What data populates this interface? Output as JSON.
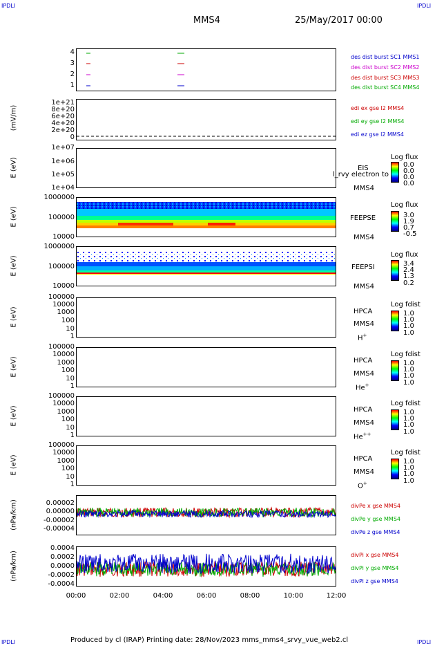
{
  "corners": {
    "tl": "IPDLI",
    "tr": "IPDLI",
    "bl": "IPDLI",
    "br": "IPDLI"
  },
  "header": {
    "spacecraft": "MMS4",
    "datetime": "25/May/2017 00:00"
  },
  "footer": {
    "text": "Produced by cl (IRAP)    Printing date: 28/Nov/2023    mms_mms4_srvy_vue_web2.cl"
  },
  "x_axis": {
    "ticks": [
      "00:00",
      "02:00",
      "04:00",
      "06:00",
      "08:00",
      "10:00",
      "12:00"
    ]
  },
  "panels": {
    "p1": {
      "yticks": [
        "4",
        "3",
        "2",
        "1"
      ],
      "labels": [
        {
          "text": "des dist burst SC1 MMS1",
          "color": "#0000cc"
        },
        {
          "text": "des dist burst SC2 MMS2",
          "color": "#cc00cc"
        },
        {
          "text": "des dist burst SC3 MMS3",
          "color": "#cc0000"
        },
        {
          "text": "des dist burst SC4 MMS4",
          "color": "#00aa00"
        }
      ]
    },
    "p2": {
      "ylabel": "(mV/m)",
      "yticks": [
        "1e+21",
        "8e+20",
        "6e+20",
        "4e+20",
        "2e+20",
        "0"
      ],
      "labels": [
        {
          "text": "edi ex gse l2 MMS4",
          "color": "#cc0000"
        },
        {
          "text": "edi ey gse l2 MMS4",
          "color": "#00aa00"
        },
        {
          "text": "edi ez gse l2 MMS4",
          "color": "#0000cc"
        }
      ]
    },
    "p3": {
      "ylabel": "E (eV)",
      "yticks": [
        "1e+07",
        "1e+06",
        "1e+05",
        "1e+04"
      ],
      "inst": "EIS",
      "inst2": "MMS4",
      "overlay": "l_rvy electron to",
      "cbar_title": "Log flux",
      "cbar_vals": [
        "0.0",
        "0.0",
        "0.0",
        "0.0"
      ]
    },
    "p4": {
      "ylabel": "E (eV)",
      "yticks": [
        "1000000",
        "100000",
        "10000"
      ],
      "inst": "FEEPSE",
      "inst2": "MMS4",
      "cbar_title": "Log flux",
      "cbar_vals": [
        "3.0",
        "1.9",
        "0.7",
        "-0.5"
      ]
    },
    "p5": {
      "ylabel": "E (eV)",
      "yticks": [
        "1000000",
        "100000",
        "10000"
      ],
      "inst": "FEEPSI",
      "inst2": "MMS4",
      "cbar_title": "Log flux",
      "cbar_vals": [
        "3.4",
        "2.4",
        "1.3",
        "0.2"
      ]
    },
    "p6": {
      "ylabel": "E (eV)",
      "yticks": [
        "100000",
        "10000",
        "1000",
        "100",
        "10",
        "1"
      ],
      "inst": "HPCA",
      "inst2": "MMS4",
      "species": "H",
      "sup": "+",
      "cbar_title": "Log fdist",
      "cbar_vals": [
        "1.0",
        "1.0",
        "1.0",
        "1.0"
      ]
    },
    "p7": {
      "ylabel": "E (eV)",
      "yticks": [
        "100000",
        "10000",
        "1000",
        "100",
        "10",
        "1"
      ],
      "inst": "HPCA",
      "inst2": "MMS4",
      "species": "He",
      "sup": "+",
      "cbar_title": "Log fdist",
      "cbar_vals": [
        "1.0",
        "1.0",
        "1.0",
        "1.0"
      ]
    },
    "p8": {
      "ylabel": "E (eV)",
      "yticks": [
        "100000",
        "10000",
        "1000",
        "100",
        "10",
        "1"
      ],
      "inst": "HPCA",
      "inst2": "MMS4",
      "species": "He",
      "sup": "++",
      "cbar_title": "Log fdist",
      "cbar_vals": [
        "1.0",
        "1.0",
        "1.0",
        "1.0"
      ]
    },
    "p9": {
      "ylabel": "E (eV)",
      "yticks": [
        "100000",
        "10000",
        "1000",
        "100",
        "10",
        "1"
      ],
      "inst": "HPCA",
      "inst2": "MMS4",
      "species": "O",
      "sup": "+",
      "cbar_title": "Log fdist",
      "cbar_vals": [
        "1.0",
        "1.0",
        "1.0",
        "1.0"
      ]
    },
    "p10": {
      "ylabel": "(nPa/km)",
      "yticks": [
        "0.00002",
        "0.00000",
        "-0.00002",
        "-0.00004"
      ],
      "labels": [
        {
          "text": "divPe x gse MMS4",
          "color": "#cc0000"
        },
        {
          "text": "divPe y gse MMS4",
          "color": "#00aa00"
        },
        {
          "text": "divPe z gse MMS4",
          "color": "#0000cc"
        }
      ]
    },
    "p11": {
      "ylabel": "(nPa/km)",
      "yticks": [
        "0.0004",
        "0.0002",
        "0.0000",
        "-0.0002",
        "-0.0004"
      ],
      "labels": [
        {
          "text": "divPi x gse MMS4",
          "color": "#cc0000"
        },
        {
          "text": "divPi y gse MMS4",
          "color": "#00aa00"
        },
        {
          "text": "divPi z gse MMS4",
          "color": "#0000cc"
        }
      ]
    }
  },
  "chart_data": [
    {
      "type": "scatter",
      "panel": "burst availability",
      "ylim": [
        0.5,
        4.5
      ],
      "series": [
        {
          "name": "des dist burst SC1 MMS1",
          "color": "#0000cc",
          "y": 1,
          "x_hours": [
            0.5,
            4.7
          ]
        },
        {
          "name": "des dist burst SC2 MMS2",
          "color": "#cc00cc",
          "y": 2,
          "x_hours": [
            0.5,
            4.7
          ]
        },
        {
          "name": "des dist burst SC3 MMS3",
          "color": "#cc0000",
          "y": 3,
          "x_hours": [
            0.5,
            4.7
          ]
        },
        {
          "name": "des dist burst SC4 MMS4",
          "color": "#00aa00",
          "y": 4,
          "x_hours": [
            0.5,
            4.7
          ]
        }
      ]
    },
    {
      "type": "line",
      "panel": "EDI E-field",
      "ylabel": "(mV/m)",
      "ylim": [
        0,
        1e+21
      ],
      "values": "flat near 0"
    },
    {
      "type": "heatmap",
      "panel": "FEEPS electrons",
      "ylabel": "E (eV)",
      "ylim": [
        10000,
        1000000
      ],
      "scale": "log",
      "colorbar": "Log flux",
      "crange": [
        -0.5,
        3.0
      ]
    },
    {
      "type": "heatmap",
      "panel": "FEEPS ions",
      "ylabel": "E (eV)",
      "ylim": [
        10000,
        1000000
      ],
      "scale": "log",
      "colorbar": "Log flux",
      "crange": [
        0.2,
        3.4
      ]
    },
    {
      "type": "line",
      "panel": "divPe",
      "ylabel": "(nPa/km)",
      "ylim": [
        -5e-05,
        3e-05
      ]
    },
    {
      "type": "line",
      "panel": "divPi",
      "ylabel": "(nPa/km)",
      "ylim": [
        -0.00045,
        0.00045
      ]
    }
  ]
}
